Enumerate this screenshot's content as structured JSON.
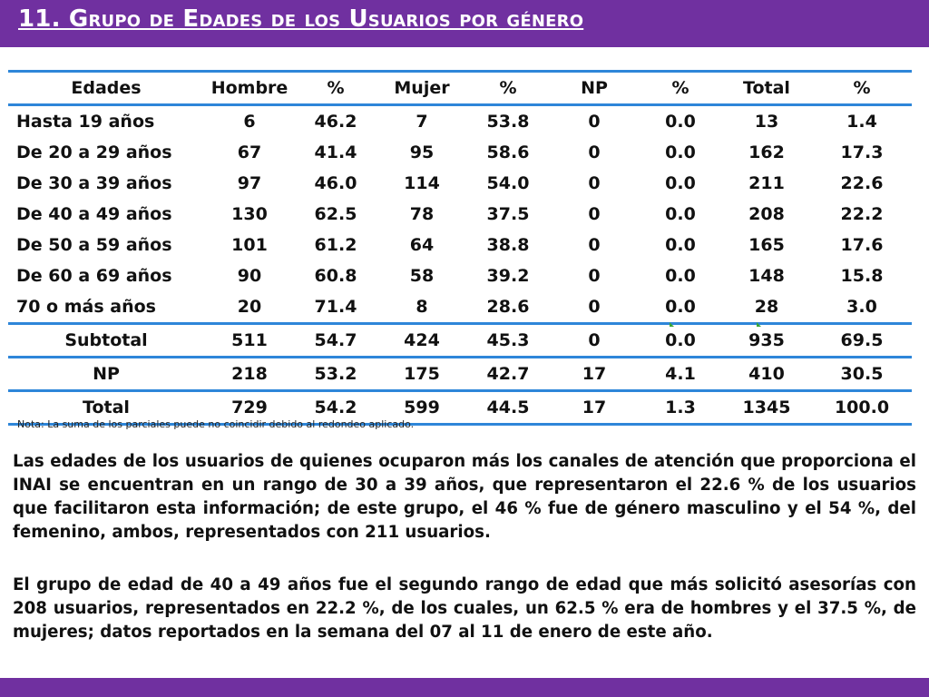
{
  "slide": {
    "title": "11. Grupo de  Edades de los Usuarios por género",
    "accent_color": "#7030a0",
    "rule_color": "#2e86d9"
  },
  "table": {
    "headers": [
      "Edades",
      "Hombre",
      "%",
      "Mujer",
      "%",
      "NP",
      "%",
      "Total",
      "%"
    ],
    "rows": [
      [
        "Hasta 19 años",
        "6",
        "46.2",
        "7",
        "53.8",
        "0",
        "0.0",
        "13",
        "1.4"
      ],
      [
        "De 20 a 29 años",
        "67",
        "41.4",
        "95",
        "58.6",
        "0",
        "0.0",
        "162",
        "17.3"
      ],
      [
        "De 30 a 39 años",
        "97",
        "46.0",
        "114",
        "54.0",
        "0",
        "0.0",
        "211",
        "22.6"
      ],
      [
        "De 40 a 49 años",
        "130",
        "62.5",
        "78",
        "37.5",
        "0",
        "0.0",
        "208",
        "22.2"
      ],
      [
        "De 50 a 59 años",
        "101",
        "61.2",
        "64",
        "38.8",
        "0",
        "0.0",
        "165",
        "17.6"
      ],
      [
        "De 60 a 69 años",
        "90",
        "60.8",
        "58",
        "39.2",
        "0",
        "0.0",
        "148",
        "15.8"
      ],
      [
        "70 o más años",
        "20",
        "71.4",
        "8",
        "28.6",
        "0",
        "0.0",
        "28",
        "3.0"
      ]
    ],
    "subtotal": [
      "Subtotal",
      "511",
      "54.7",
      "424",
      "45.3",
      "0",
      "0.0",
      "935",
      "69.5"
    ],
    "np": [
      "NP",
      "218",
      "53.2",
      "175",
      "42.7",
      "17",
      "4.1",
      "410",
      "30.5"
    ],
    "total": [
      "Total",
      "729",
      "54.2",
      "599",
      "44.5",
      "17",
      "1.3",
      "1345",
      "100.0"
    ]
  },
  "note": "Nota: La suma de los parciales puede no coincidir debido al redondeo aplicado.",
  "paragraphs": [
    "Las edades de los usuarios de quienes ocuparon más los canales de atención que proporciona el INAI se encuentran en un rango de 30 a 39 años, que representaron el 22.6 % de los usuarios que facilitaron esta información; de este grupo, el 46 % fue de género masculino y el 54 %, del femenino, ambos, representados con 211 usuarios.",
    "El grupo de edad de 40 a 49 años fue el segundo rango de edad que más solicitó asesorías con 208 usuarios, representados en 22.2 %, de los cuales, un 62.5 % era de hombres y el 37.5 %, de mujeres; datos reportados en la semana del 07 al 11 de enero de este año."
  ]
}
